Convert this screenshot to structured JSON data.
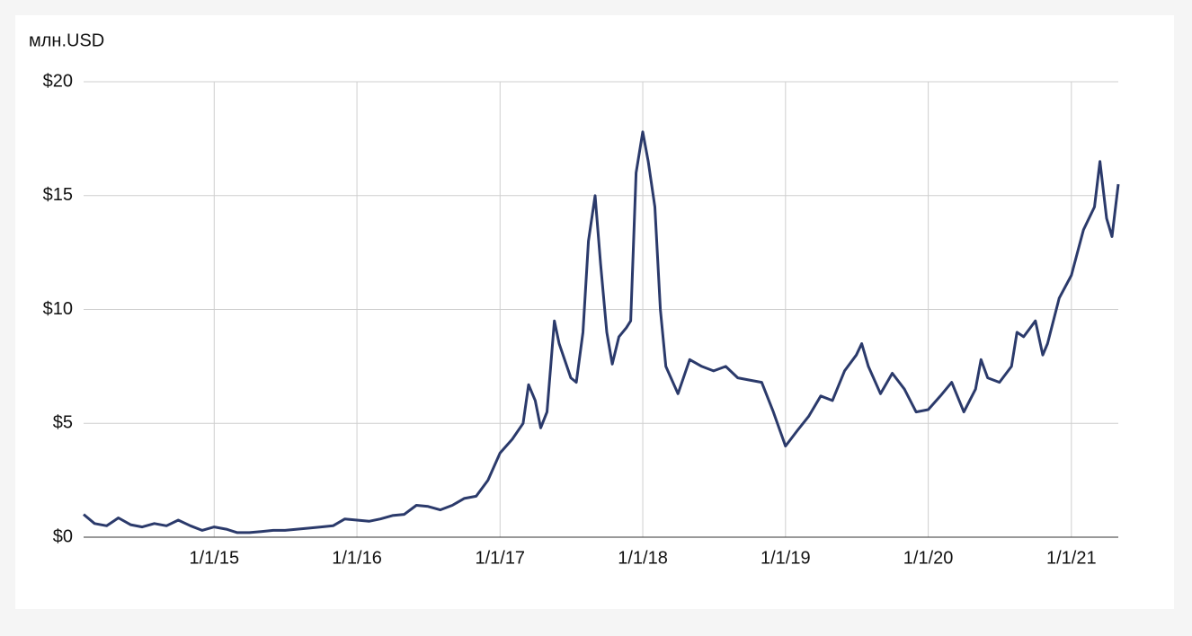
{
  "chart_data": {
    "type": "line",
    "y_label": "млн.USD",
    "color": "#2b3a6b",
    "grid": true,
    "x": [
      "2/1/14",
      "3/1/14",
      "4/1/14",
      "5/1/14",
      "6/1/14",
      "7/1/14",
      "8/1/14",
      "9/1/14",
      "10/1/14",
      "11/1/14",
      "12/1/14",
      "1/1/15",
      "2/1/15",
      "3/1/15",
      "4/1/15",
      "5/1/15",
      "6/1/15",
      "7/1/15",
      "8/1/15",
      "9/1/15",
      "10/1/15",
      "11/1/15",
      "12/1/15",
      "1/1/16",
      "2/1/16",
      "3/1/16",
      "4/1/16",
      "5/1/16",
      "6/1/16",
      "7/1/16",
      "8/1/16",
      "9/1/16",
      "10/1/16",
      "11/1/16",
      "12/1/16",
      "1/1/17",
      "2/1/17",
      "3/1/17",
      "3/15/17",
      "4/1/17",
      "4/15/17",
      "5/1/17",
      "5/20/17",
      "6/1/17",
      "7/1/17",
      "7/15/17",
      "8/1/17",
      "8/15/17",
      "9/1/17",
      "9/15/17",
      "10/1/17",
      "10/15/17",
      "11/1/17",
      "11/20/17",
      "12/1/17",
      "12/15/17",
      "1/1/18",
      "1/15/18",
      "2/1/18",
      "2/15/18",
      "3/1/18",
      "4/1/18",
      "5/1/18",
      "6/1/18",
      "7/1/18",
      "8/1/18",
      "9/1/18",
      "10/1/18",
      "11/1/18",
      "12/1/18",
      "1/1/19",
      "2/1/19",
      "3/1/19",
      "4/1/19",
      "5/1/19",
      "6/1/19",
      "7/1/19",
      "7/15/19",
      "8/1/19",
      "9/1/19",
      "10/1/19",
      "11/1/19",
      "12/1/19",
      "1/1/20",
      "2/1/20",
      "3/1/20",
      "4/1/20",
      "5/1/20",
      "5/15/20",
      "6/1/20",
      "7/1/20",
      "8/1/20",
      "8/15/20",
      "9/1/20",
      "10/1/20",
      "10/20/20",
      "11/1/20",
      "12/1/20",
      "1/1/21",
      "2/1/21",
      "3/1/21",
      "3/15/21",
      "4/1/21",
      "4/15/21",
      "5/1/21"
    ],
    "values": [
      1.0,
      0.6,
      0.5,
      0.85,
      0.55,
      0.45,
      0.6,
      0.5,
      0.75,
      0.5,
      0.3,
      0.45,
      0.35,
      0.2,
      0.2,
      0.25,
      0.3,
      0.3,
      0.35,
      0.4,
      0.45,
      0.5,
      0.8,
      0.75,
      0.7,
      0.8,
      0.95,
      1.0,
      1.4,
      1.35,
      1.2,
      1.4,
      1.7,
      1.8,
      2.5,
      3.7,
      4.3,
      5.0,
      6.7,
      6.0,
      4.8,
      5.5,
      9.5,
      8.5,
      7.0,
      6.8,
      9.0,
      13,
      15,
      12,
      9.0,
      7.6,
      8.8,
      9.2,
      9.5,
      16,
      17.8,
      16.5,
      14.5,
      10.0,
      7.5,
      6.3,
      7.8,
      7.5,
      7.3,
      7.5,
      7.0,
      6.9,
      6.8,
      5.5,
      4.0,
      4.7,
      5.3,
      6.2,
      6.0,
      7.3,
      8.0,
      8.5,
      7.5,
      6.3,
      7.2,
      6.5,
      5.5,
      5.6,
      6.2,
      6.8,
      5.5,
      6.5,
      7.8,
      7.0,
      6.8,
      7.5,
      9.0,
      8.8,
      9.5,
      8.0,
      8.5,
      10.5,
      11.5,
      13.5,
      14.5,
      16.5,
      14,
      13.2,
      15.5
    ],
    "xlim": [
      "2/1/14",
      "5/1/21"
    ],
    "xticks": [
      "1/1/15",
      "1/1/16",
      "1/1/17",
      "1/1/18",
      "1/1/19",
      "1/1/20",
      "1/1/21"
    ],
    "ylim": [
      0,
      20
    ],
    "yticks": [
      {
        "value": 0,
        "label": "$0"
      },
      {
        "value": 5,
        "label": "$5"
      },
      {
        "value": 10,
        "label": "$10"
      },
      {
        "value": 15,
        "label": "$15"
      },
      {
        "value": 20,
        "label": "$20"
      }
    ]
  }
}
